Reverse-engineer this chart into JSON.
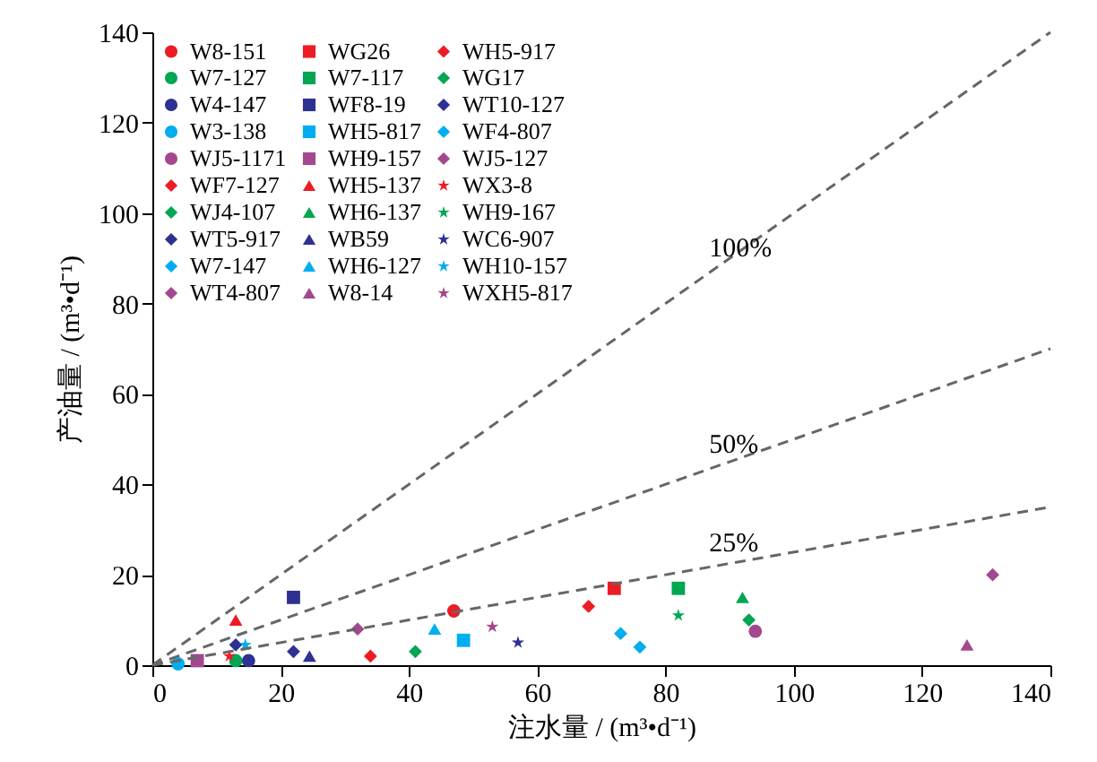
{
  "chart_data": {
    "type": "scatter",
    "xlabel": "注水量 / (m³•d⁻¹)",
    "ylabel": "产油量 / (m³•d⁻¹)",
    "xlim": [
      0,
      140
    ],
    "ylim": [
      0,
      140
    ],
    "xticks": [
      0,
      20,
      40,
      60,
      80,
      100,
      120,
      140
    ],
    "yticks": [
      0,
      20,
      40,
      60,
      80,
      100,
      120,
      140
    ],
    "legend": "top left",
    "series": [
      {
        "name": "W8-151",
        "color": "#ed1c24",
        "marker": "circle",
        "x": [
          47
        ],
        "values": [
          12
        ]
      },
      {
        "name": "W7-127",
        "color": "#00a651",
        "marker": "circle",
        "x": [
          13
        ],
        "values": [
          1
        ]
      },
      {
        "name": "W4-147",
        "color": "#2e3192",
        "marker": "circle",
        "x": [
          15
        ],
        "values": [
          1
        ]
      },
      {
        "name": "W3-138",
        "color": "#00aeef",
        "marker": "circle",
        "x": [
          4
        ],
        "values": [
          0.3
        ]
      },
      {
        "name": "WJ5-1171",
        "color": "#a3488f",
        "marker": "circle",
        "x": [
          94
        ],
        "values": [
          7.5
        ]
      },
      {
        "name": "WF7-127",
        "color": "#ed1c24",
        "marker": "diamond",
        "x": [
          34
        ],
        "values": [
          2
        ]
      },
      {
        "name": "WJ4-107",
        "color": "#00a651",
        "marker": "diamond",
        "x": [
          93
        ],
        "values": [
          10
        ]
      },
      {
        "name": "WT5-917",
        "color": "#2e3192",
        "marker": "diamond",
        "x": [
          22
        ],
        "values": [
          3
        ]
      },
      {
        "name": "W7-147",
        "color": "#00aeef",
        "marker": "diamond",
        "x": [
          76
        ],
        "values": [
          4
        ]
      },
      {
        "name": "WT4-807",
        "color": "#a3488f",
        "marker": "diamond",
        "x": [
          131
        ],
        "values": [
          20
        ]
      },
      {
        "name": "WG26",
        "color": "#ed1c24",
        "marker": "square",
        "x": [
          72
        ],
        "values": [
          17
        ]
      },
      {
        "name": "W7-117",
        "color": "#00a651",
        "marker": "square",
        "x": [
          82
        ],
        "values": [
          17
        ]
      },
      {
        "name": "WF8-19",
        "color": "#2e3192",
        "marker": "square",
        "x": [
          22
        ],
        "values": [
          15
        ]
      },
      {
        "name": "WH5-817",
        "color": "#00aeef",
        "marker": "square",
        "x": [
          48.5
        ],
        "values": [
          5.5
        ]
      },
      {
        "name": "WH9-157",
        "color": "#a3488f",
        "marker": "square",
        "x": [
          7
        ],
        "values": [
          1
        ]
      },
      {
        "name": "WH5-137",
        "color": "#ed1c24",
        "marker": "triangle",
        "x": [
          13
        ],
        "values": [
          10
        ]
      },
      {
        "name": "WH6-137",
        "color": "#00a651",
        "marker": "triangle",
        "x": [
          92
        ],
        "values": [
          15
        ]
      },
      {
        "name": "WB59",
        "color": "#2e3192",
        "marker": "triangle",
        "x": [
          24.5
        ],
        "values": [
          2
        ]
      },
      {
        "name": "WH6-127",
        "color": "#00aeef",
        "marker": "triangle",
        "x": [
          44
        ],
        "values": [
          8
        ]
      },
      {
        "name": "W8-14",
        "color": "#a3488f",
        "marker": "triangle",
        "x": [
          127
        ],
        "values": [
          4.5
        ]
      },
      {
        "name": "WH5-917",
        "color": "#ed1c24",
        "marker": "diamond",
        "x": [
          68
        ],
        "values": [
          13
        ]
      },
      {
        "name": "WG17",
        "color": "#00a651",
        "marker": "diamond",
        "x": [
          41
        ],
        "values": [
          3
        ]
      },
      {
        "name": "WT10-127",
        "color": "#2e3192",
        "marker": "diamond",
        "x": [
          13
        ],
        "values": [
          4.5
        ]
      },
      {
        "name": "WF4-807",
        "color": "#00aeef",
        "marker": "diamond",
        "x": [
          73
        ],
        "values": [
          7
        ]
      },
      {
        "name": "WJ5-127",
        "color": "#a3488f",
        "marker": "diamond",
        "x": [
          32
        ],
        "values": [
          8
        ]
      },
      {
        "name": "WX3-8",
        "color": "#ed1c24",
        "marker": "star",
        "x": [
          12
        ],
        "values": [
          2
        ]
      },
      {
        "name": "WH9-167",
        "color": "#00a651",
        "marker": "star",
        "x": [
          82
        ],
        "values": [
          11
        ]
      },
      {
        "name": "WC6-907",
        "color": "#2e3192",
        "marker": "star",
        "x": [
          57
        ],
        "values": [
          5
        ]
      },
      {
        "name": "WH10-157",
        "color": "#00aeef",
        "marker": "star",
        "x": [
          14.5
        ],
        "values": [
          4.5
        ]
      },
      {
        "name": "WXH5-817",
        "color": "#a3488f",
        "marker": "star",
        "x": [
          53
        ],
        "values": [
          8.5
        ]
      },
      {
        "type": "line",
        "name": "100%",
        "color": "#666666",
        "line_style": "dashed",
        "marker": "none",
        "x": [
          0,
          140
        ],
        "values": [
          0,
          140
        ]
      },
      {
        "type": "line",
        "name": "50%",
        "color": "#666666",
        "line_style": "dashed",
        "marker": "none",
        "x": [
          0,
          140
        ],
        "values": [
          0,
          70
        ]
      },
      {
        "type": "line",
        "name": "25%",
        "color": "#666666",
        "line_style": "dashed",
        "marker": "none",
        "x": [
          0,
          140
        ],
        "values": [
          0,
          35
        ]
      }
    ]
  }
}
